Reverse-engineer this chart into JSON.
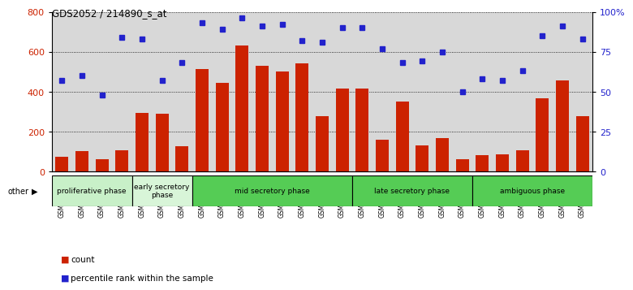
{
  "title": "GDS2052 / 214890_s_at",
  "samples": [
    "GSM109814",
    "GSM109815",
    "GSM109816",
    "GSM109817",
    "GSM109820",
    "GSM109821",
    "GSM109822",
    "GSM109824",
    "GSM109825",
    "GSM109826",
    "GSM109827",
    "GSM109828",
    "GSM109829",
    "GSM109830",
    "GSM109831",
    "GSM109834",
    "GSM109835",
    "GSM109836",
    "GSM109837",
    "GSM109838",
    "GSM109839",
    "GSM109818",
    "GSM109819",
    "GSM109823",
    "GSM109832",
    "GSM109833",
    "GSM109840"
  ],
  "counts": [
    75,
    100,
    60,
    105,
    295,
    290,
    125,
    515,
    445,
    630,
    530,
    500,
    540,
    275,
    415,
    415,
    160,
    350,
    130,
    165,
    60,
    80,
    85,
    105,
    365,
    455,
    275
  ],
  "percentiles": [
    57,
    60,
    48,
    84,
    83,
    57,
    68,
    93,
    89,
    96,
    91,
    92,
    82,
    81,
    90,
    90,
    77,
    68,
    69,
    75,
    50,
    58,
    57,
    63,
    85,
    91,
    83
  ],
  "phase_data": [
    {
      "name": "proliferative phase",
      "start": 0,
      "end": 4,
      "color": "#c8f0c8"
    },
    {
      "name": "early secretory\nphase",
      "start": 4,
      "end": 7,
      "color": "#d8f5d8"
    },
    {
      "name": "mid secretory phase",
      "start": 7,
      "end": 15,
      "color": "#55cc55"
    },
    {
      "name": "late secretory phase",
      "start": 15,
      "end": 21,
      "color": "#55cc55"
    },
    {
      "name": "ambiguous phase",
      "start": 21,
      "end": 27,
      "color": "#55cc55"
    }
  ],
  "ylim_left": [
    0,
    800
  ],
  "ylim_right": [
    0,
    100
  ],
  "bar_color": "#cc2200",
  "dot_color": "#2222cc",
  "bg_color": "#d8d8d8",
  "tick_label_color": "#888888"
}
